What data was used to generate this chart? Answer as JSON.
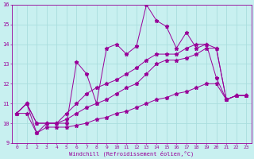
{
  "xlabel": "Windchill (Refroidissement éolien,°C)",
  "bg_color": "#c8f0f0",
  "grid_color": "#aadddd",
  "line_color": "#990099",
  "x": [
    0,
    1,
    2,
    3,
    4,
    5,
    6,
    7,
    8,
    9,
    10,
    11,
    12,
    13,
    14,
    15,
    16,
    17,
    18,
    19,
    20,
    21,
    22,
    23
  ],
  "line1": [
    10.5,
    11.0,
    9.5,
    10.0,
    10.0,
    10.0,
    13.1,
    12.5,
    11.0,
    13.8,
    14.0,
    13.5,
    13.9,
    16.0,
    15.2,
    14.9,
    13.8,
    14.6,
    13.8,
    14.0,
    12.3,
    11.2,
    11.4,
    11.4
  ],
  "line2": [
    10.5,
    11.0,
    10.0,
    10.0,
    10.0,
    10.5,
    11.0,
    11.5,
    11.8,
    12.0,
    12.2,
    12.5,
    12.8,
    13.2,
    13.5,
    13.5,
    13.5,
    13.8,
    14.0,
    14.0,
    13.8,
    11.2,
    11.4,
    11.4
  ],
  "line3": [
    10.5,
    11.0,
    10.0,
    10.0,
    10.0,
    10.2,
    10.5,
    10.8,
    11.0,
    11.2,
    11.5,
    11.8,
    12.0,
    12.5,
    13.0,
    13.2,
    13.2,
    13.3,
    13.5,
    13.8,
    13.8,
    11.2,
    11.4,
    11.4
  ],
  "line4": [
    10.5,
    10.5,
    9.5,
    9.8,
    9.8,
    9.8,
    9.9,
    10.0,
    10.2,
    10.3,
    10.5,
    10.6,
    10.8,
    11.0,
    11.2,
    11.3,
    11.5,
    11.6,
    11.8,
    12.0,
    12.0,
    11.2,
    11.4,
    11.4
  ],
  "ylim": [
    9,
    16
  ],
  "xlim_min": -0.5,
  "xlim_max": 23.5,
  "yticks": [
    9,
    10,
    11,
    12,
    13,
    14,
    15,
    16
  ],
  "xticks": [
    0,
    1,
    2,
    3,
    4,
    5,
    6,
    7,
    8,
    9,
    10,
    11,
    12,
    13,
    14,
    15,
    16,
    17,
    18,
    19,
    20,
    21,
    22,
    23
  ]
}
